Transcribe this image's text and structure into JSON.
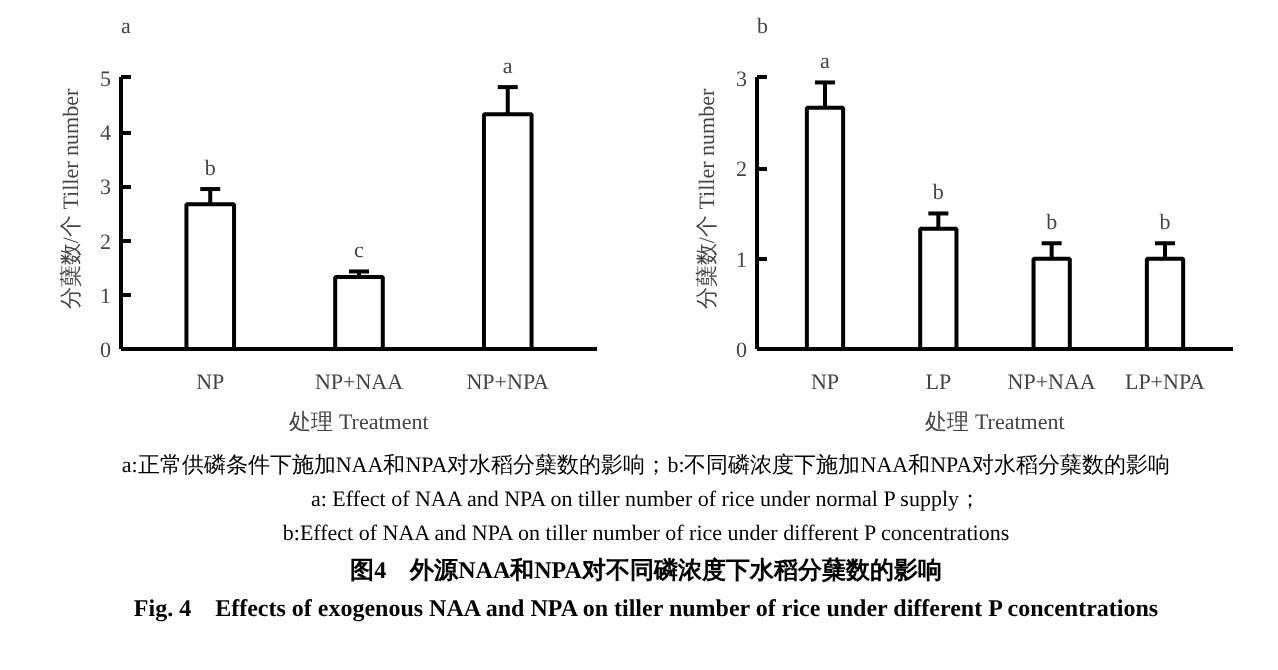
{
  "chart_data": [
    {
      "type": "bar",
      "title": "a",
      "xlabel": "处理 Treatment",
      "ylabel": "分蘖数/个 Tiller number",
      "categories": [
        "NP",
        "NP+NAA",
        "NP+NPA"
      ],
      "values": [
        2.67,
        1.33,
        4.33
      ],
      "errors": [
        0.28,
        0.1,
        0.5
      ],
      "color": "#ffffff",
      "ylim": [
        0,
        5
      ],
      "yticks": [
        0,
        1,
        2,
        3,
        4,
        5
      ],
      "grid": false,
      "annotations": [
        {
          "text": "b",
          "x": "NP",
          "y": 2.95
        },
        {
          "text": "c",
          "x": "NP+NAA",
          "y": 1.43
        },
        {
          "text": "a",
          "x": "NP+NPA",
          "y": 4.83
        }
      ]
    },
    {
      "type": "bar",
      "title": "b",
      "xlabel": "处理 Treatment",
      "ylabel": "分蘖数/个 Tiller number",
      "categories": [
        "NP",
        "LP",
        "NP+NAA",
        "LP+NPA"
      ],
      "values": [
        2.67,
        1.33,
        1.0,
        1.0
      ],
      "errors": [
        0.28,
        0.17,
        0.17,
        0.17
      ],
      "color": "#ffffff",
      "ylim": [
        0,
        3
      ],
      "yticks": [
        0,
        1,
        2,
        3
      ],
      "grid": false,
      "annotations": [
        {
          "text": "a",
          "x": "NP",
          "y": 2.95
        },
        {
          "text": "b",
          "x": "LP",
          "y": 1.5
        },
        {
          "text": "b",
          "x": "NP+NAA",
          "y": 1.17
        },
        {
          "text": "b",
          "x": "LP+NPA",
          "y": 1.17
        }
      ]
    },
    {
      "type": "other",
      "title": "图4　外源NAA和NPA对不同磷浓度下水稻分蘖数的影响",
      "subtitle": "Fig. 4　Effects of exogenous NAA and NPA on tiller number of rice under different P concentrations",
      "annotations": [
        "a:正常供磷条件下施加NAA和NPA对水稻分蘖数的影响；b:不同磷浓度下施加NAA和NPA对水稻分蘖数的影响",
        "a: Effect of NAA and NPA on tiller number of rice under normal P supply；",
        "b:Effect of NAA and NPA on tiller number of rice under different P concentrations"
      ]
    }
  ]
}
